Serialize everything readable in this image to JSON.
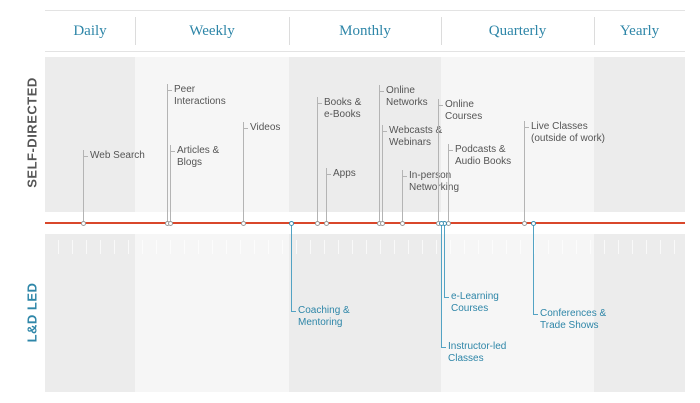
{
  "periods": [
    "Daily",
    "Weekly",
    "Monthly",
    "Quarterly",
    "Yearly"
  ],
  "rows": {
    "self_directed": "SELF-DIRECTED",
    "ld_led": "L&D LED"
  },
  "colors": {
    "accent_blue": "#2e86a8",
    "timeline_red": "#d9472b",
    "label_gray": "#555555"
  },
  "self_directed_items": [
    {
      "text": "Web Search"
    },
    {
      "text": "Peer\nInteractions"
    },
    {
      "text": "Articles &\nBlogs"
    },
    {
      "text": "Videos"
    },
    {
      "text": "Books &\ne-Books"
    },
    {
      "text": "Apps"
    },
    {
      "text": "Online\nNetworks"
    },
    {
      "text": "Webcasts &\nWebinars"
    },
    {
      "text": "In-person\nNetworking"
    },
    {
      "text": "Online\nCourses"
    },
    {
      "text": "Podcasts &\nAudio Books"
    },
    {
      "text": "Live Classes\n(outside of work)"
    }
  ],
  "ld_led_items": [
    {
      "text": "Coaching &\nMentoring"
    },
    {
      "text": "e-Learning\nCourses"
    },
    {
      "text": "Instructor-led\nClasses"
    },
    {
      "text": "Conferences &\nTrade Shows"
    }
  ]
}
